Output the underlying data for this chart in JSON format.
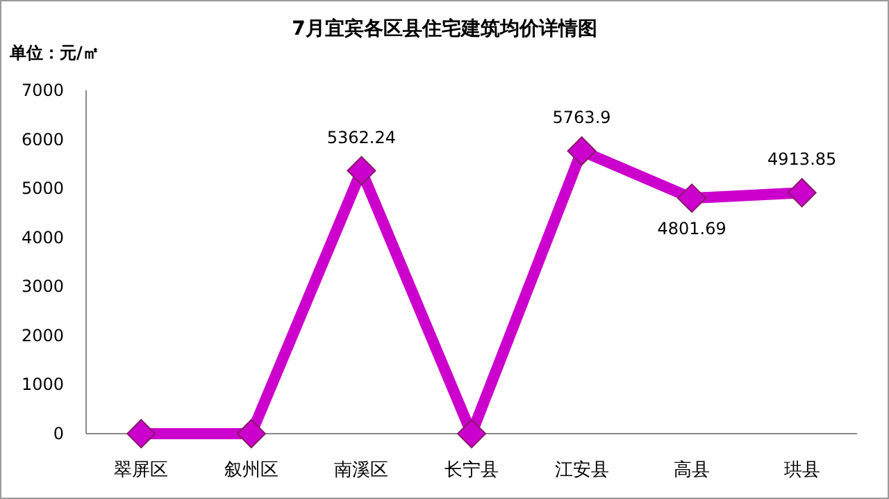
{
  "chart_data": {
    "type": "line",
    "title": "7月宜宾各区县住宅建筑均价详情图",
    "ylabel": "单位：元/㎡",
    "categories": [
      "翠屏区",
      "叙州区",
      "南溪区",
      "长宁县",
      "江安县",
      "高县",
      "珙县"
    ],
    "series": [
      {
        "color": "#cc00cc",
        "values": [
          0,
          0,
          5362.24,
          0,
          5763.9,
          4801.69,
          4913.85
        ],
        "value_labels": [
          null,
          null,
          "5362.24",
          null,
          "5763.9",
          "4801.69",
          "4913.85"
        ]
      }
    ],
    "ylim": [
      0,
      7000
    ],
    "yticks": [
      0,
      1000,
      2000,
      3000,
      4000,
      5000,
      6000,
      7000
    ],
    "grid": false,
    "marker": "diamond",
    "line_style": "solid"
  }
}
